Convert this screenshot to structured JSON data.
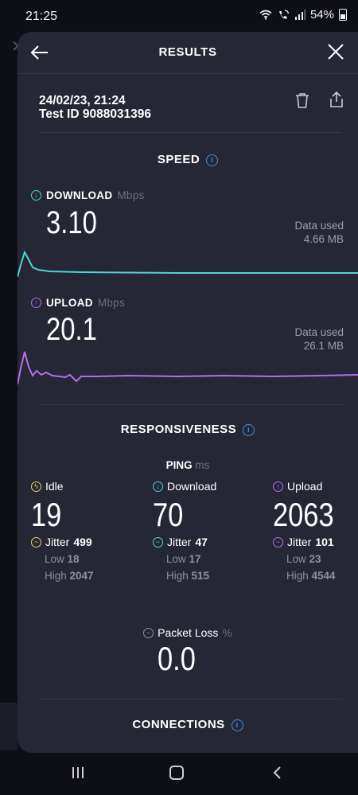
{
  "status_bar": {
    "time": "21:25",
    "battery": "54%"
  },
  "header": {
    "title": "RESULTS"
  },
  "test": {
    "date": "24/02/23, 21:24",
    "id": "Test ID 9088031396"
  },
  "speed": {
    "title": "SPEED",
    "download": {
      "label": "DOWNLOAD",
      "unit": "Mbps",
      "value": "3.10",
      "data_used_label": "Data used",
      "data_used": "4.66 MB",
      "color": "#4fd3d6"
    },
    "upload": {
      "label": "UPLOAD",
      "unit": "Mbps",
      "value": "20.1",
      "data_used_label": "Data used",
      "data_used": "26.1 MB",
      "color": "#b56cf0"
    }
  },
  "responsiveness": {
    "title": "RESPONSIVENESS",
    "ping_label": "PING",
    "ping_unit": "ms",
    "idle": {
      "label": "Idle",
      "value": "19",
      "jitter_label": "Jitter",
      "jitter": "499",
      "low_label": "Low",
      "low": "18",
      "high_label": "High",
      "high": "2047",
      "color": "#e8d26a"
    },
    "download": {
      "label": "Download",
      "value": "70",
      "jitter_label": "Jitter",
      "jitter": "47",
      "low_label": "Low",
      "low": "17",
      "high_label": "High",
      "high": "515",
      "color": "#4fd3d6"
    },
    "upload": {
      "label": "Upload",
      "value": "2063",
      "jitter_label": "Jitter",
      "jitter": "101",
      "low_label": "Low",
      "low": "23",
      "high_label": "High",
      "high": "4544",
      "color": "#b56cf0"
    },
    "packet_loss": {
      "label": "Packet Loss",
      "unit": "%",
      "value": "0.0"
    }
  },
  "connections": {
    "title": "CONNECTIONS"
  }
}
